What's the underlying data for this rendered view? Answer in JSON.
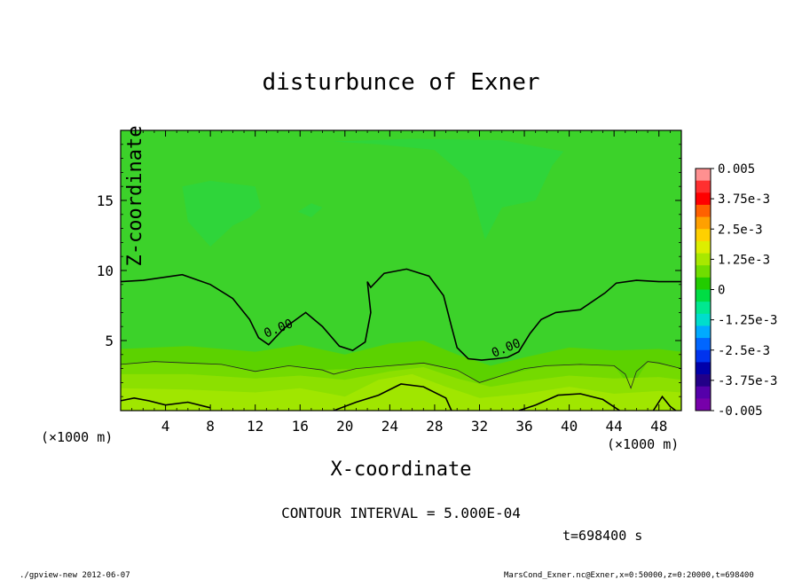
{
  "chart_data": {
    "type": "heatmap",
    "title": "disturbunce of Exner",
    "xlabel": "X-coordinate",
    "ylabel": "Z-coordinate",
    "x_unit": "(×1000 m)",
    "y_unit": "(×1000 m)",
    "xlim": [
      0,
      50
    ],
    "ylim": [
      0,
      20
    ],
    "x_ticks": [
      4,
      8,
      12,
      16,
      20,
      24,
      28,
      32,
      36,
      40,
      44,
      48
    ],
    "y_ticks": [
      5,
      10,
      15
    ],
    "contour_labels": [
      {
        "text": "0.00",
        "x": 14.2,
        "z": 5.6
      },
      {
        "text": "0.00",
        "x": 34.5,
        "z": 4.2
      }
    ],
    "colorbar": {
      "labels": [
        "0.005",
        "3.75e-3",
        "2.5e-3",
        "1.25e-3",
        "0",
        "-1.25e-3",
        "-2.5e-3",
        "-3.75e-3",
        "-0.005"
      ],
      "min": -0.005,
      "max": 0.005,
      "colors": [
        "#ff9090",
        "#ff3030",
        "#ff0000",
        "#ff6000",
        "#ffa000",
        "#ffd000",
        "#ddee00",
        "#a8e800",
        "#70dd00",
        "#22cc00",
        "#00dd44",
        "#00e890",
        "#00ddcc",
        "#00aaff",
        "#0066ff",
        "#0033ee",
        "#0000aa",
        "#220088",
        "#5500aa",
        "#7700aa"
      ]
    },
    "zero_contour": [
      [
        0,
        9.2
      ],
      [
        2,
        9.3
      ],
      [
        5.5,
        9.7
      ],
      [
        8,
        9.0
      ],
      [
        10,
        8.0
      ],
      [
        11.5,
        6.5
      ],
      [
        12.3,
        5.2
      ],
      [
        13.2,
        4.7
      ],
      [
        14.6,
        5.9
      ],
      [
        16.5,
        7.0
      ],
      [
        18,
        6.0
      ],
      [
        19.5,
        4.6
      ],
      [
        20.7,
        4.3
      ],
      [
        21.8,
        4.9
      ],
      [
        22.3,
        7.0
      ],
      [
        22.0,
        9.2
      ],
      [
        22.3,
        8.8
      ],
      [
        23.5,
        9.8
      ],
      [
        25.5,
        10.1
      ],
      [
        27.5,
        9.6
      ],
      [
        28.8,
        8.2
      ],
      [
        29.5,
        6.0
      ],
      [
        30,
        4.5
      ],
      [
        31,
        3.7
      ],
      [
        32.2,
        3.6
      ],
      [
        33.5,
        3.7
      ],
      [
        34.5,
        3.8
      ],
      [
        35.5,
        4.2
      ],
      [
        36.5,
        5.5
      ],
      [
        37.5,
        6.5
      ],
      [
        38.8,
        7.0
      ],
      [
        41,
        7.2
      ],
      [
        43.2,
        8.4
      ],
      [
        44.2,
        9.1
      ],
      [
        46,
        9.3
      ],
      [
        48,
        9.2
      ],
      [
        50,
        9.2
      ]
    ],
    "inner_contour": [
      [
        0,
        3.3
      ],
      [
        3,
        3.5
      ],
      [
        6,
        3.4
      ],
      [
        9,
        3.3
      ],
      [
        12,
        2.8
      ],
      [
        15,
        3.2
      ],
      [
        18,
        2.9
      ],
      [
        19,
        2.6
      ],
      [
        21,
        3.0
      ],
      [
        24,
        3.2
      ],
      [
        27,
        3.4
      ],
      [
        30,
        2.9
      ],
      [
        32,
        2.0
      ],
      [
        34,
        2.5
      ],
      [
        36,
        3.0
      ],
      [
        38,
        3.2
      ],
      [
        41,
        3.3
      ],
      [
        44,
        3.2
      ],
      [
        45,
        2.6
      ],
      [
        45.5,
        1.6
      ],
      [
        46,
        2.8
      ],
      [
        47,
        3.5
      ],
      [
        48,
        3.4
      ],
      [
        50,
        3.0
      ]
    ],
    "bottom_contours": [
      [
        [
          0,
          0.7
        ],
        [
          1.2,
          0.9
        ],
        [
          2.5,
          0.7
        ],
        [
          4,
          0.4
        ],
        [
          6,
          0.6
        ],
        [
          8,
          0.2
        ]
      ],
      [
        [
          19,
          0
        ],
        [
          21,
          0.6
        ],
        [
          23,
          1.1
        ],
        [
          25,
          1.9
        ],
        [
          27,
          1.7
        ],
        [
          29,
          0.9
        ],
        [
          29.5,
          0
        ]
      ],
      [
        [
          35.5,
          0
        ],
        [
          37,
          0.4
        ],
        [
          39,
          1.1
        ],
        [
          41,
          1.2
        ],
        [
          43,
          0.8
        ],
        [
          44.5,
          0
        ]
      ],
      [
        [
          47.5,
          0
        ],
        [
          48.3,
          1.0
        ],
        [
          49,
          0.3
        ],
        [
          49.5,
          0
        ]
      ]
    ],
    "fill_levels": [
      {
        "color": "#a0e600",
        "profile": [
          [
            0,
            1.6
          ],
          [
            6,
            1.5
          ],
          [
            12,
            1.3
          ],
          [
            16,
            1.6
          ],
          [
            20,
            1.0
          ],
          [
            23,
            2.2
          ],
          [
            26,
            2.6
          ],
          [
            29,
            1.7
          ],
          [
            32,
            0.9
          ],
          [
            36,
            1.2
          ],
          [
            40,
            1.7
          ],
          [
            44,
            1.2
          ],
          [
            48,
            1.4
          ],
          [
            50,
            1.3
          ]
        ]
      },
      {
        "color": "#8ce000",
        "profile": [
          [
            0,
            2.6
          ],
          [
            6,
            2.6
          ],
          [
            12,
            2.3
          ],
          [
            16,
            2.5
          ],
          [
            20,
            2.2
          ],
          [
            24,
            2.8
          ],
          [
            27,
            3.1
          ],
          [
            30,
            2.3
          ],
          [
            33,
            1.7
          ],
          [
            36,
            2.1
          ],
          [
            40,
            2.5
          ],
          [
            44,
            2.3
          ],
          [
            48,
            2.4
          ],
          [
            50,
            2.2
          ]
        ]
      },
      {
        "color": "#74da00",
        "profile": [
          [
            0,
            3.3
          ],
          [
            3,
            3.5
          ],
          [
            6,
            3.4
          ],
          [
            9,
            3.3
          ],
          [
            12,
            2.8
          ],
          [
            15,
            3.2
          ],
          [
            18,
            2.9
          ],
          [
            21,
            3.0
          ],
          [
            24,
            3.2
          ],
          [
            27,
            3.4
          ],
          [
            30,
            2.9
          ],
          [
            32,
            2.0
          ],
          [
            34,
            2.5
          ],
          [
            38,
            3.2
          ],
          [
            41,
            3.3
          ],
          [
            44,
            3.2
          ],
          [
            45.5,
            1.6
          ],
          [
            47,
            3.5
          ],
          [
            50,
            3.0
          ]
        ]
      },
      {
        "color": "#5cd200",
        "profile": [
          [
            0,
            4.4
          ],
          [
            6,
            4.6
          ],
          [
            12,
            4.2
          ],
          [
            16,
            4.7
          ],
          [
            20,
            4.0
          ],
          [
            24,
            4.8
          ],
          [
            27,
            5.0
          ],
          [
            30,
            4.0
          ],
          [
            33,
            3.2
          ],
          [
            36,
            3.8
          ],
          [
            40,
            4.5
          ],
          [
            44,
            4.3
          ],
          [
            48,
            4.4
          ],
          [
            50,
            4.2
          ]
        ]
      }
    ],
    "cool_patches": [
      {
        "color": "#2fd53a",
        "points": [
          [
            19,
            19.2
          ],
          [
            23,
            19.0
          ],
          [
            28,
            18.6
          ],
          [
            31,
            16.5
          ],
          [
            32.5,
            12.2
          ],
          [
            34,
            14.5
          ],
          [
            37,
            15.0
          ],
          [
            38.5,
            17.5
          ],
          [
            39.5,
            18.5
          ],
          [
            34,
            19.3
          ],
          [
            26,
            19.4
          ]
        ]
      },
      {
        "color": "#2fd53a",
        "points": [
          [
            5.5,
            16.0
          ],
          [
            8,
            16.4
          ],
          [
            12,
            16.0
          ],
          [
            12.5,
            14.5
          ],
          [
            11.5,
            13.8
          ],
          [
            10,
            13.2
          ],
          [
            8,
            11.7
          ],
          [
            6,
            13.5
          ]
        ]
      },
      {
        "color": "#2fd53a",
        "points": [
          [
            15.8,
            14.2
          ],
          [
            17,
            14.8
          ],
          [
            18,
            14.5
          ],
          [
            17,
            13.8
          ]
        ]
      }
    ],
    "base_color": "#3cd22a"
  },
  "footer": {
    "contour_interval": "CONTOUR INTERVAL = 5.000E-04",
    "time": "t=698400 s",
    "left_note": "./gpview-new  2012-06-07",
    "right_note": "MarsCond_Exner.nc@Exner,x=0:50000,z=0:20000,t=698400"
  }
}
